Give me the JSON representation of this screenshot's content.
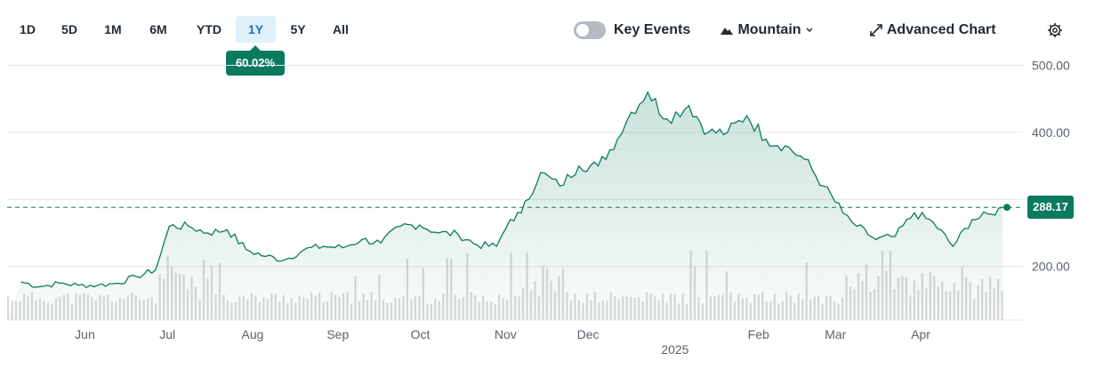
{
  "toolbar": {
    "ranges": [
      {
        "label": "1D",
        "active": false
      },
      {
        "label": "5D",
        "active": false
      },
      {
        "label": "1M",
        "active": false
      },
      {
        "label": "6M",
        "active": false
      },
      {
        "label": "YTD",
        "active": false
      },
      {
        "label": "1Y",
        "active": true
      },
      {
        "label": "5Y",
        "active": false
      },
      {
        "label": "All",
        "active": false
      }
    ],
    "change_pct": "60.02%",
    "key_events_label": "Key Events",
    "key_events_on": false,
    "chart_type_label": "Mountain",
    "advanced_label": "Advanced Chart"
  },
  "colors": {
    "line": "#0b7a5e",
    "fill": "#0b7a5e",
    "volume": "#d9d9d9",
    "grid": "#e6e6e6",
    "badge": "#0b7a5e"
  },
  "chart_data": {
    "type": "area",
    "ylim": [
      120,
      510
    ],
    "yticks": [
      "500.00",
      "400.00",
      "300.00",
      "200.00"
    ],
    "ytick_values": [
      500,
      400,
      300,
      200
    ],
    "x_month_labels": [
      "Jun",
      "Jul",
      "Aug",
      "Sep",
      "Oct",
      "Nov",
      "Dec",
      "Feb",
      "Mar",
      "Apr"
    ],
    "x_year_label": "2025",
    "last_price": 288.17,
    "last_price_label": "288.17",
    "grid": true,
    "series": [
      {
        "x": [
          "2024-05-10",
          "2024-05-17",
          "2024-05-24",
          "2024-05-31",
          "2024-06-07",
          "2024-06-14",
          "2024-06-21",
          "2024-06-28",
          "2024-07-03",
          "2024-07-10",
          "2024-07-17",
          "2024-07-24",
          "2024-07-31",
          "2024-08-07",
          "2024-08-14",
          "2024-08-21",
          "2024-08-28",
          "2024-09-04",
          "2024-09-11",
          "2024-09-18",
          "2024-09-25",
          "2024-10-02",
          "2024-10-09",
          "2024-10-16",
          "2024-10-23",
          "2024-10-30",
          "2024-11-04",
          "2024-11-08",
          "2024-11-15",
          "2024-11-22",
          "2024-11-29",
          "2024-12-06",
          "2024-12-13",
          "2024-12-18",
          "2024-12-24",
          "2024-12-31",
          "2025-01-08",
          "2025-01-15",
          "2025-01-22",
          "2025-01-29",
          "2025-02-05",
          "2025-02-12",
          "2025-02-19",
          "2025-02-26",
          "2025-03-05",
          "2025-03-10",
          "2025-03-17",
          "2025-03-24",
          "2025-03-31",
          "2025-04-07",
          "2025-04-14",
          "2025-04-21",
          "2025-04-28",
          "2025-05-02"
        ],
        "values": [
          177,
          170,
          175,
          172,
          172,
          175,
          185,
          195,
          260,
          260,
          250,
          255,
          225,
          215,
          210,
          225,
          230,
          228,
          240,
          235,
          260,
          262,
          250,
          248,
          232,
          230,
          270,
          280,
          340,
          320,
          350,
          350,
          390,
          430,
          460,
          420,
          440,
          400,
          400,
          425,
          390,
          380,
          360,
          320,
          280,
          260,
          240,
          245,
          280,
          265,
          230,
          270,
          278,
          288
        ]
      }
    ]
  }
}
